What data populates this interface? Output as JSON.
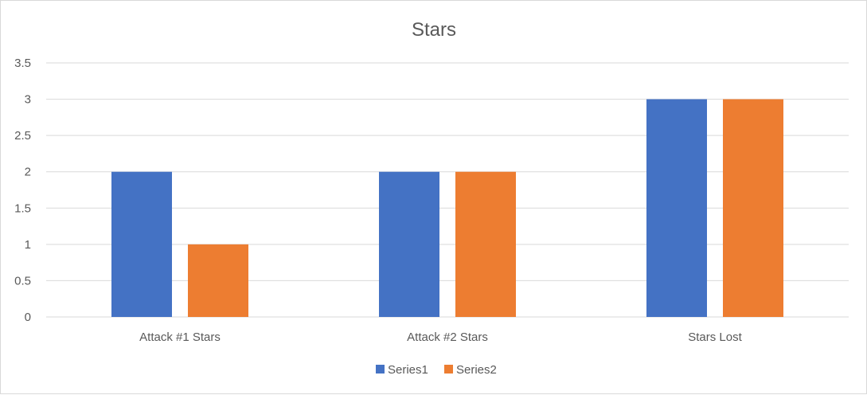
{
  "chart_data": {
    "type": "bar",
    "title": "Stars",
    "categories": [
      "Attack #1 Stars",
      "Attack #2 Stars",
      "Stars Lost"
    ],
    "series": [
      {
        "name": "Series1",
        "values": [
          2,
          2,
          3
        ],
        "color": "#4472c4"
      },
      {
        "name": "Series2",
        "values": [
          1,
          2,
          3
        ],
        "color": "#ed7d31"
      }
    ],
    "yticks": [
      "0",
      "0.5",
      "1",
      "1.5",
      "2",
      "2.5",
      "3",
      "3.5"
    ],
    "ylim": [
      0,
      3.5
    ],
    "grid": true,
    "legend_position": "bottom",
    "gridline_color": "#d9d9d9"
  }
}
